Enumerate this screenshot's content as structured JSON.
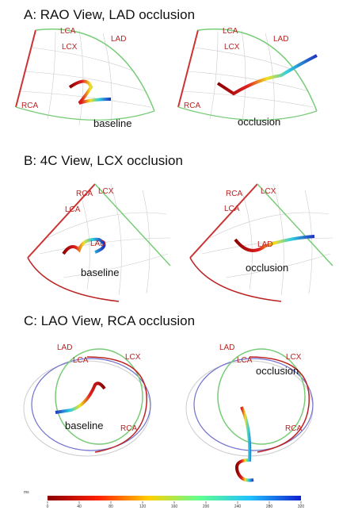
{
  "panels": [
    {
      "title": "A: RAO View, LAD occlusion",
      "views": [
        {
          "labels": [
            "LCA",
            "LCX",
            "LAD",
            "RCA"
          ],
          "condition": "baseline"
        },
        {
          "labels": [
            "LCA",
            "LCX",
            "LAD",
            "RCA"
          ],
          "condition": "occlusion"
        }
      ]
    },
    {
      "title": "B: 4C View, LCX occlusion",
      "views": [
        {
          "labels": [
            "RCA",
            "LCX",
            "LCA",
            "LAD"
          ],
          "condition": "baseline"
        },
        {
          "labels": [
            "RCA",
            "LCX",
            "LCA",
            "LAD"
          ],
          "condition": "occlusion"
        }
      ]
    },
    {
      "title": "C: LAO View, RCA occlusion",
      "views": [
        {
          "labels": [
            "LAD",
            "LCA",
            "LCX",
            "RCA"
          ],
          "condition": "baseline"
        },
        {
          "labels": [
            "LAD",
            "LCA",
            "LCX",
            "RCA"
          ],
          "condition": "occlusion"
        }
      ]
    }
  ],
  "colorbar": {
    "unit": "ms",
    "ticks": [
      0,
      40,
      80,
      120,
      160,
      200,
      240,
      280,
      320
    ]
  }
}
